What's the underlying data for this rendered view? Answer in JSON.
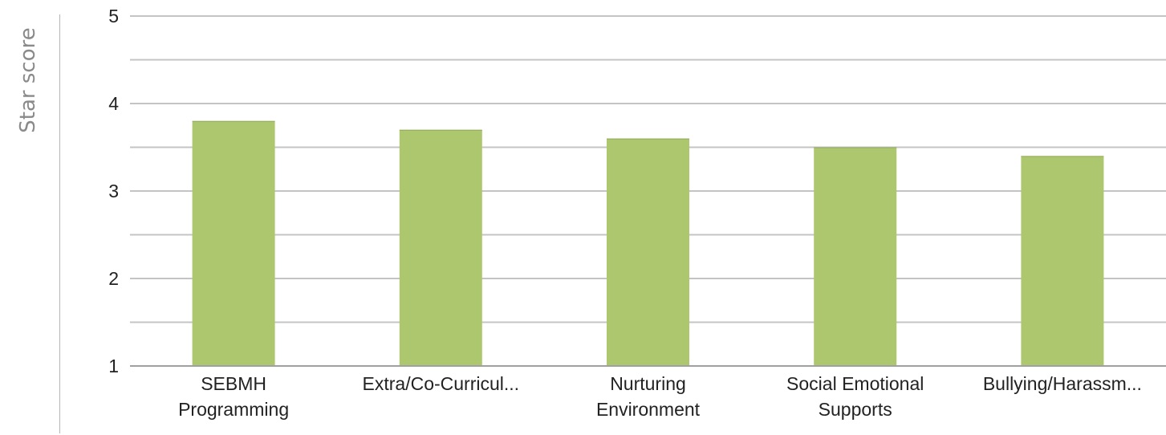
{
  "chart_data": {
    "type": "bar",
    "title": "",
    "xlabel": "",
    "ylabel": "Star score",
    "categories": [
      [
        "SEBMH",
        "Programming"
      ],
      [
        "Extra/Co-Curricul..."
      ],
      [
        "Nurturing",
        "Environment"
      ],
      [
        "Social Emotional",
        "Supports"
      ],
      [
        "Bullying/Harassm..."
      ]
    ],
    "values": [
      3.8,
      3.7,
      3.6,
      3.5,
      3.4
    ],
    "ylim": [
      1,
      5
    ],
    "yticks": [
      1,
      2,
      3,
      4,
      5
    ],
    "minor_gridlines": [
      1.5,
      2.5,
      3.5,
      4.5
    ],
    "grid": true,
    "legend": "none",
    "colors": {
      "bar": "#adc76f",
      "bar_edge": "#8fa85a",
      "grid": "#c4c4c4",
      "axis": "#a0a0a0"
    }
  }
}
